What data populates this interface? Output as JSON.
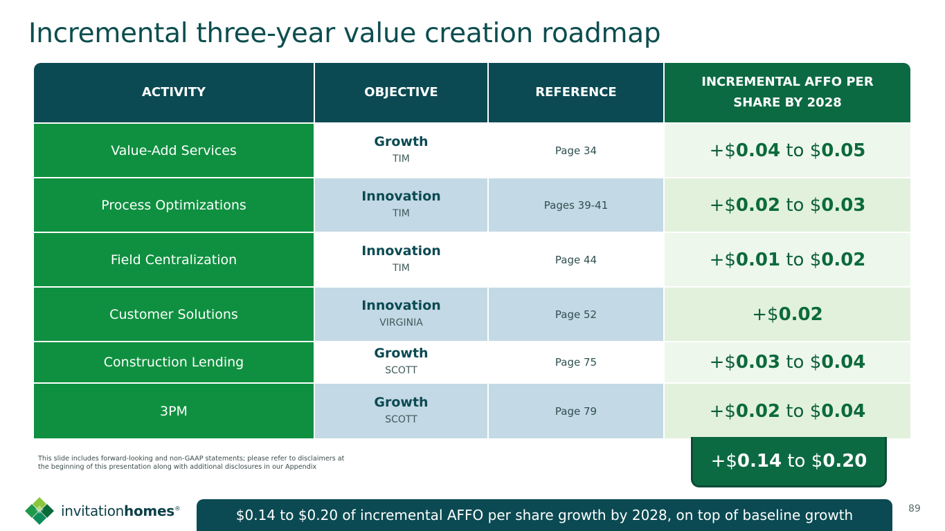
{
  "title": "Incremental three-year value creation roadmap",
  "table": {
    "headers": [
      "ACTIVITY",
      "OBJECTIVE",
      "REFERENCE",
      "INCREMENTAL AFFO PER SHARE BY 2028"
    ],
    "rows": [
      {
        "activity": "Value-Add Services",
        "objective": "Growth",
        "owner": "TIM",
        "reference": "Page 34",
        "low": "0.04",
        "high": "0.05"
      },
      {
        "activity": "Process Optimizations",
        "objective": "Innovation",
        "owner": "TIM",
        "reference": "Pages 39-41",
        "low": "0.02",
        "high": "0.03"
      },
      {
        "activity": "Field Centralization",
        "objective": "Innovation",
        "owner": "TIM",
        "reference": "Page 44",
        "low": "0.01",
        "high": "0.02"
      },
      {
        "activity": "Customer Solutions",
        "objective": "Innovation",
        "owner": "VIRGINIA",
        "reference": "Page 52",
        "low": "0.02",
        "high": ""
      },
      {
        "activity": "Construction Lending",
        "objective": "Growth",
        "owner": "SCOTT",
        "reference": "Page 75",
        "low": "0.03",
        "high": "0.04"
      },
      {
        "activity": "3PM",
        "objective": "Growth",
        "owner": "SCOTT",
        "reference": "Page 79",
        "low": "0.02",
        "high": "0.04"
      }
    ],
    "range_prefix": "+$",
    "range_joiner": " to $",
    "total": {
      "low": "0.14",
      "high": "0.20"
    }
  },
  "disclaimer": "This slide includes forward-looking and non-GAAP statements; please refer to disclaimers at the beginning of this presentation along with additional disclosures in our Appendix",
  "logo": {
    "word1": "invitation",
    "word2": "homes",
    "mark": "®"
  },
  "banner": "$0.14 to $0.20 of incremental AFFO per share growth by 2028, on top of baseline growth",
  "page_number": "89",
  "colors": {
    "dark_teal": "#0b4a52",
    "green": "#0f9040",
    "dark_green": "#0c6a43",
    "light_blue": "#c3d9e5",
    "light_green": "#e1f1dc"
  }
}
